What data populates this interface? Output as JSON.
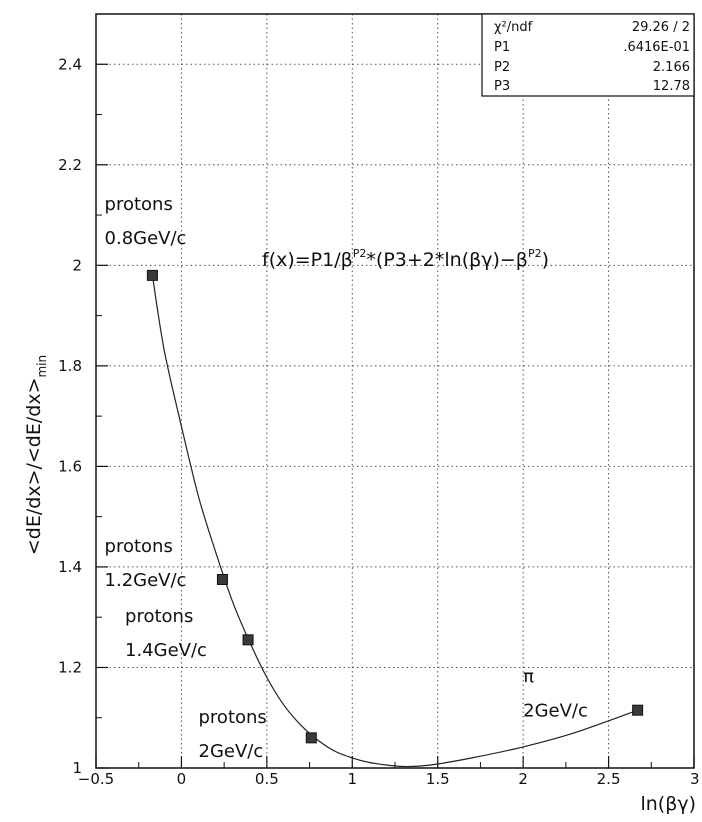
{
  "chart_data": {
    "type": "scatter",
    "xlabel": "ln(βγ)",
    "ylabel": "<dE/dx>/<dE/dx>",
    "ylabel_sub": "min",
    "xlim": [
      -0.5,
      3
    ],
    "ylim": [
      1,
      2.5
    ],
    "grid": true,
    "x_ticks": [
      -0.5,
      0,
      0.5,
      1,
      1.5,
      2,
      2.5,
      3
    ],
    "x_tick_labels": [
      "−0.5",
      "0",
      "0.5",
      "1",
      "1.5",
      "2",
      "2.5",
      "3"
    ],
    "y_ticks": [
      1,
      1.2,
      1.4,
      1.6,
      1.8,
      2,
      2.2,
      2.4
    ],
    "y_tick_labels": [
      "1",
      "1.2",
      "1.4",
      "1.6",
      "1.8",
      "2",
      "2.2",
      "2.4"
    ],
    "series": [
      {
        "points": [
          {
            "x": -0.17,
            "y": 1.98
          },
          {
            "x": 0.24,
            "y": 1.375
          },
          {
            "x": 0.39,
            "y": 1.255
          },
          {
            "x": 0.76,
            "y": 1.06
          },
          {
            "x": 2.67,
            "y": 1.115
          }
        ]
      }
    ],
    "fit_curve": {
      "formula_prefix": "f(x)=P1/β",
      "formula_sup1": "P2",
      "formula_mid": "*(P3+2*ln(βγ)−β",
      "formula_sup2": "P2",
      "formula_suffix": ")",
      "x_range": [
        -0.17,
        2.67
      ],
      "points": [
        [
          -0.17,
          1.98
        ],
        [
          -0.1,
          1.83
        ],
        [
          0.0,
          1.68
        ],
        [
          0.1,
          1.54
        ],
        [
          0.2,
          1.43
        ],
        [
          0.3,
          1.33
        ],
        [
          0.4,
          1.25
        ],
        [
          0.5,
          1.18
        ],
        [
          0.6,
          1.125
        ],
        [
          0.7,
          1.085
        ],
        [
          0.8,
          1.055
        ],
        [
          0.9,
          1.033
        ],
        [
          1.0,
          1.02
        ],
        [
          1.1,
          1.011
        ],
        [
          1.2,
          1.006
        ],
        [
          1.3,
          1.003
        ],
        [
          1.4,
          1.004
        ],
        [
          1.5,
          1.008
        ],
        [
          1.7,
          1.02
        ],
        [
          2.0,
          1.042
        ],
        [
          2.3,
          1.07
        ],
        [
          2.67,
          1.115
        ]
      ]
    },
    "annotations": [
      {
        "id": "p08",
        "lines": [
          "protons",
          "0.8GeV/c"
        ],
        "x": -0.45,
        "y": 2.11
      },
      {
        "id": "p12",
        "lines": [
          "protons",
          "1.2GeV/c"
        ],
        "x": -0.45,
        "y": 1.43
      },
      {
        "id": "p14",
        "lines": [
          "protons",
          "1.4GeV/c"
        ],
        "x": -0.33,
        "y": 1.29
      },
      {
        "id": "p2",
        "lines": [
          "protons",
          "2GeV/c"
        ],
        "x": 0.1,
        "y": 1.09
      },
      {
        "id": "pi",
        "lines": [
          "π",
          "2GeV/c"
        ],
        "x": 2.0,
        "y": 1.17
      }
    ],
    "stats_box": {
      "rows": [
        {
          "label": "χ²/ndf",
          "value": "29.26   /   2"
        },
        {
          "label": "P1",
          "value": ".6416E-01"
        },
        {
          "label": "P2",
          "value": "2.166"
        },
        {
          "label": "P3",
          "value": "12.78"
        }
      ]
    }
  }
}
